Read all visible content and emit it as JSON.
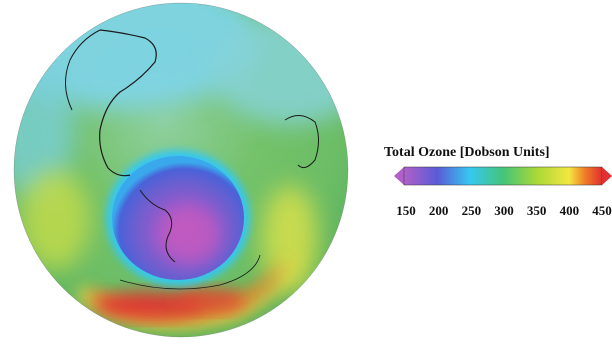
{
  "colorbar": {
    "title": "Total Ozone [Dobson Units]",
    "ticks": [
      "150",
      "200",
      "250",
      "300",
      "350",
      "400",
      "450"
    ],
    "min": 150,
    "max": 450,
    "extend": "both",
    "stops": [
      {
        "value": 150,
        "color": "#b060c8"
      },
      {
        "value": 200,
        "color": "#5a5bd6"
      },
      {
        "value": 250,
        "color": "#36c8f0"
      },
      {
        "value": 300,
        "color": "#44c47a"
      },
      {
        "value": 350,
        "color": "#a8d838"
      },
      {
        "value": 400,
        "color": "#f4e640"
      },
      {
        "value": 425,
        "color": "#f07a28"
      },
      {
        "value": 450,
        "color": "#e03030"
      }
    ]
  },
  "colors": {
    "ocean_high_lat": "#7fd4e6",
    "midlatitude_band": "#74c26a",
    "ozone_hole": "#6a5fd0",
    "hole_core": "#c25ac0",
    "collar_max": "#e8422e",
    "collar_secondary": "#f0d64a",
    "coastline": "#1a1a1a"
  }
}
